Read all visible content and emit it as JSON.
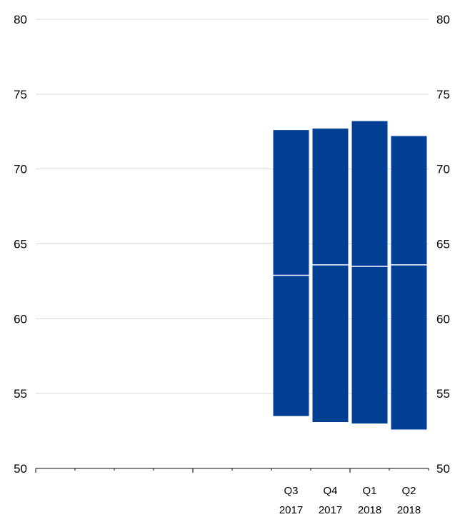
{
  "chart_data": {
    "type": "bar",
    "subtype": "floating-range-with-marker",
    "colors": {
      "bar": "#003f94",
      "marker": "#ffffff",
      "grid": "#d9d9d9",
      "axis": "#000000"
    },
    "y_axis": {
      "ylim": [
        50,
        80
      ],
      "ticks": [
        50,
        55,
        60,
        65,
        70,
        75,
        80
      ],
      "left_labels": true,
      "right_labels": true,
      "grid": true
    },
    "x_axis": {
      "slots": 10,
      "major_ticks_at_slot": [
        0,
        4,
        8
      ],
      "categories": [
        {
          "slot": 6,
          "quarter": "Q3",
          "year": "2017"
        },
        {
          "slot": 7,
          "quarter": "Q4",
          "year": "2017"
        },
        {
          "slot": 8,
          "quarter": "Q1",
          "year": "2018"
        },
        {
          "slot": 9,
          "quarter": "Q2",
          "year": "2018"
        }
      ]
    },
    "bars": [
      {
        "slot": 6,
        "low": 53.5,
        "high": 72.6,
        "marker": 62.9
      },
      {
        "slot": 7,
        "low": 53.1,
        "high": 72.7,
        "marker": 63.6
      },
      {
        "slot": 8,
        "low": 53.0,
        "high": 73.2,
        "marker": 63.5
      },
      {
        "slot": 9,
        "low": 52.6,
        "high": 72.2,
        "marker": 63.6
      }
    ]
  }
}
